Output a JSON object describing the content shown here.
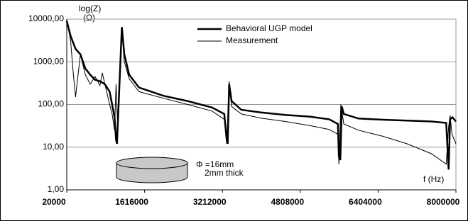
{
  "chart_data": {
    "type": "line",
    "annotations": {
      "y_label_1": "log(Z)",
      "y_label_2": "(Ω)",
      "x_label": "f (Hz)",
      "diameter": "Φ =16mm",
      "thickness": "2mm thick"
    },
    "log_y": true,
    "grid": true,
    "legend": "top",
    "ylim": [
      1,
      10000
    ],
    "yticks": [
      {
        "value": 10000,
        "label": "10000,00"
      },
      {
        "value": 1000,
        "label": "1000,00"
      },
      {
        "value": 100,
        "label": "100,00"
      },
      {
        "value": 10,
        "label": "10,00"
      },
      {
        "value": 1,
        "label": "1,00"
      }
    ],
    "xlim": [
      20000,
      8000000
    ],
    "xticks": [
      20000,
      1616000,
      3212000,
      4808000,
      6404000,
      8000000
    ],
    "series": [
      {
        "name": "Behavioral UGP model",
        "color": "#000000",
        "x": [
          20000,
          100000,
          200000,
          300000,
          400000,
          500000,
          600000,
          700000,
          800000,
          900000,
          950000,
          1000000,
          1030000,
          1050000,
          1150000,
          1200000,
          1300000,
          1500000,
          2000000,
          2500000,
          3000000,
          3250000,
          3300000,
          3320000,
          3350000,
          3400000,
          3600000,
          4000000,
          4500000,
          5000000,
          5400000,
          5580000,
          5600000,
          5630000,
          5660000,
          5700000,
          6000000,
          6500000,
          7000000,
          7500000,
          7800000,
          7850000,
          7880000,
          7930000,
          8000000
        ],
        "values": [
          9000,
          4000,
          2000,
          1500,
          700,
          500,
          380,
          350,
          300,
          200,
          100,
          50,
          15,
          12,
          6500,
          1500,
          500,
          250,
          160,
          120,
          85,
          60,
          15,
          12,
          300,
          120,
          75,
          65,
          57,
          52,
          45,
          35,
          6,
          5,
          90,
          60,
          47,
          44,
          42,
          40,
          37,
          3,
          45,
          50,
          40
        ]
      },
      {
        "name": "Measurement",
        "color": "#000000",
        "x": [
          20000,
          100000,
          150000,
          200000,
          300000,
          400000,
          500000,
          600000,
          700000,
          750000,
          800000,
          900000,
          950000,
          1000000,
          1030000,
          1060000,
          1100000,
          1150000,
          1200000,
          1300000,
          1500000,
          2000000,
          2500000,
          3000000,
          3250000,
          3300000,
          3350000,
          3400000,
          3600000,
          4000000,
          4500000,
          5000000,
          5400000,
          5580000,
          5600000,
          5640000,
          5700000,
          6000000,
          6500000,
          7000000,
          7500000,
          7800000,
          7850000,
          7880000,
          7920000,
          8000000
        ],
        "values": [
          10000,
          3000,
          600,
          150,
          1500,
          500,
          300,
          450,
          280,
          550,
          300,
          100,
          60,
          25,
          300,
          40,
          200,
          6000,
          1000,
          400,
          200,
          140,
          100,
          70,
          45,
          12,
          350,
          90,
          60,
          48,
          40,
          32,
          26,
          20,
          4,
          100,
          35,
          25,
          18,
          12,
          7,
          4,
          30,
          55,
          20,
          12
        ]
      }
    ]
  }
}
